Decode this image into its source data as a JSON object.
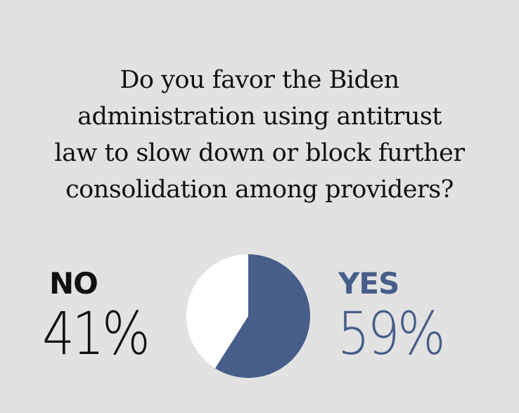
{
  "question_lines": [
    "Do you favor the Biden",
    "administration using antitrust",
    "law to slow down or block further",
    "consolidation among providers?"
  ],
  "colors": {
    "background": "#e2e2e2",
    "no": "#ffffff",
    "yes": "#475d8a",
    "no_text": "#111111",
    "yes_text": "#475d8a"
  },
  "chart_data": {
    "type": "pie",
    "title": "Do you favor the Biden administration using antitrust law to slow down or block further consolidation among providers?",
    "slices": [
      {
        "label": "NO",
        "value": 41,
        "display": "41%",
        "color": "#ffffff"
      },
      {
        "label": "YES",
        "value": 59,
        "display": "59%",
        "color": "#475d8a"
      }
    ]
  }
}
